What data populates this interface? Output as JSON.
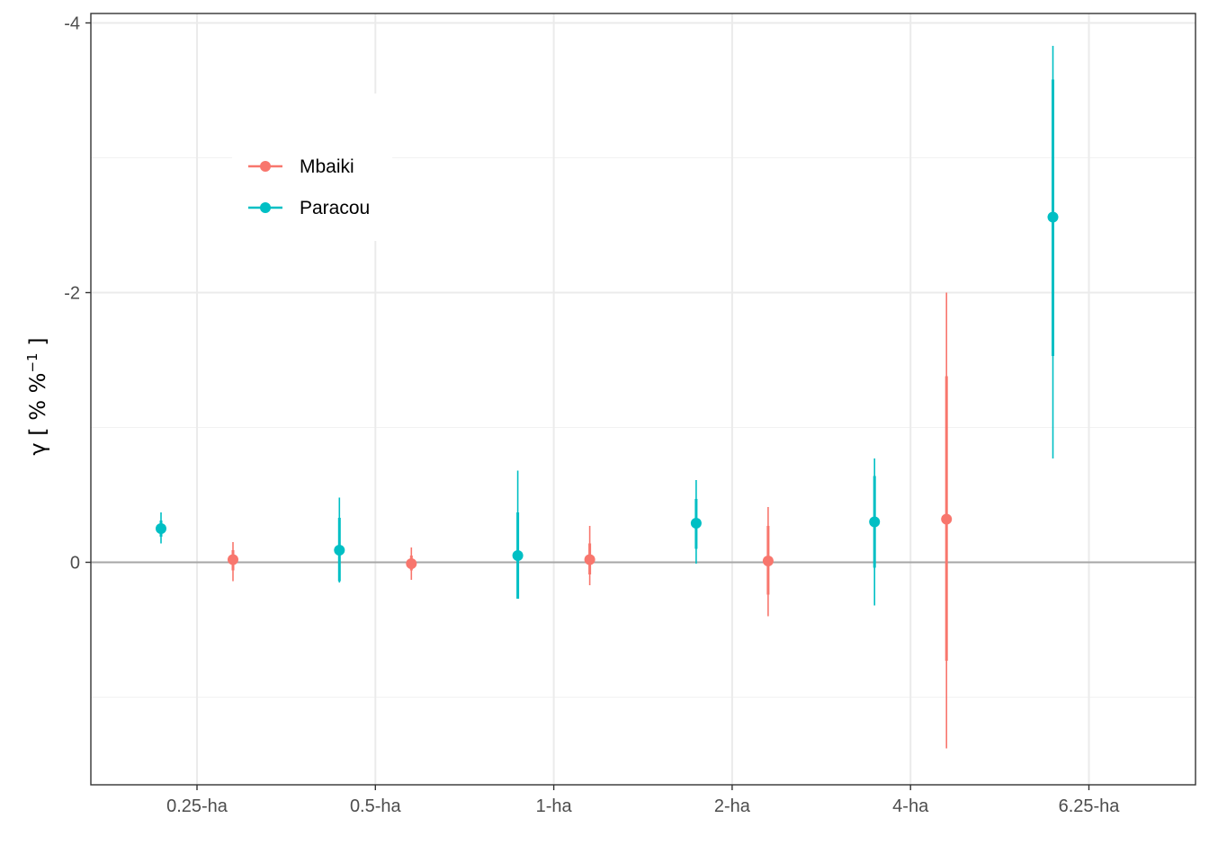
{
  "chart_data": {
    "type": "scatter",
    "title": "",
    "xlabel": "",
    "ylabel": "γ [ % %⁻¹ ]",
    "ylabel_parts": {
      "main": "γ [ % %",
      "sup": "−1",
      "tail": " ]"
    },
    "y_reversed": true,
    "ylim": [
      1.65,
      -4.07
    ],
    "yticks": [
      0,
      -2,
      -4
    ],
    "ytick_labels": [
      "0",
      "-2",
      "-4"
    ],
    "reference_line_y": 0,
    "grid": true,
    "legend_position": "top-left",
    "categories": [
      "0.25-ha",
      "0.5-ha",
      "1-ha",
      "2-ha",
      "4-ha",
      "6.25-ha"
    ],
    "series": [
      {
        "name": "Paracou",
        "color": "#00BFC4",
        "offset": -0.2,
        "points": [
          {
            "category": "0.25-ha",
            "y": -0.25,
            "inner": [
              -0.19,
              -0.31
            ],
            "outer": [
              -0.14,
              -0.37
            ]
          },
          {
            "category": "0.5-ha",
            "y": -0.09,
            "inner": [
              0.14,
              -0.33
            ],
            "outer": [
              0.15,
              -0.48
            ]
          },
          {
            "category": "1-ha",
            "y": -0.05,
            "inner": [
              0.27,
              -0.37
            ],
            "outer": [
              0.27,
              -0.68
            ]
          },
          {
            "category": "2-ha",
            "y": -0.29,
            "inner": [
              -0.1,
              -0.47
            ],
            "outer": [
              0.01,
              -0.61
            ]
          },
          {
            "category": "4-ha",
            "y": -0.3,
            "inner": [
              0.04,
              -0.64
            ],
            "outer": [
              0.32,
              -0.77
            ]
          },
          {
            "category": "6.25-ha",
            "y": -2.56,
            "inner": [
              -1.53,
              -3.58
            ],
            "outer": [
              -0.77,
              -3.83
            ]
          }
        ]
      },
      {
        "name": "Mbaiki",
        "color": "#F8766D",
        "offset": 0.2,
        "points": [
          {
            "category": "0.25-ha",
            "y": -0.02,
            "inner": [
              0.06,
              -0.09
            ],
            "outer": [
              0.14,
              -0.15
            ]
          },
          {
            "category": "0.5-ha",
            "y": 0.01,
            "inner": [
              0.06,
              -0.05
            ],
            "outer": [
              0.13,
              -0.11
            ]
          },
          {
            "category": "1-ha",
            "y": -0.02,
            "inner": [
              0.09,
              -0.14
            ],
            "outer": [
              0.17,
              -0.27
            ]
          },
          {
            "category": "2-ha",
            "y": -0.01,
            "inner": [
              0.24,
              -0.27
            ],
            "outer": [
              0.4,
              -0.41
            ]
          },
          {
            "category": "4-ha",
            "y": -0.32,
            "inner": [
              0.73,
              -1.38
            ],
            "outer": [
              1.38,
              -2.0
            ]
          }
        ]
      }
    ],
    "legend_order": [
      "Mbaiki",
      "Paracou"
    ]
  }
}
